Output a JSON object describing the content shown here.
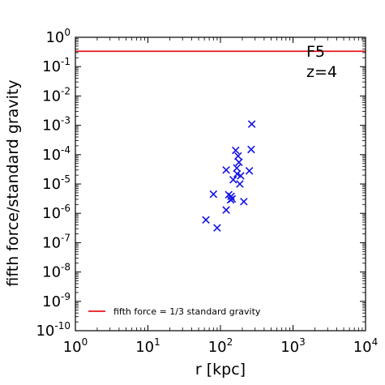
{
  "chart_data": {
    "type": "scatter",
    "title": "",
    "xlabel": "r [kpc]",
    "ylabel": "fifth force/standard gravity",
    "xscale": "log",
    "yscale": "log",
    "xlim": [
      1,
      10000
    ],
    "ylim": [
      1e-10,
      1
    ],
    "x_ticks": [
      {
        "base": "10",
        "exp": "0",
        "value": 1
      },
      {
        "base": "10",
        "exp": "1",
        "value": 10
      },
      {
        "base": "10",
        "exp": "2",
        "value": 100
      },
      {
        "base": "10",
        "exp": "3",
        "value": 1000
      },
      {
        "base": "10",
        "exp": "4",
        "value": 10000
      }
    ],
    "y_ticks": [
      {
        "base": "10",
        "exp": "-10",
        "value": 1e-10
      },
      {
        "base": "10",
        "exp": "-9",
        "value": 1e-09
      },
      {
        "base": "10",
        "exp": "-8",
        "value": 1e-08
      },
      {
        "base": "10",
        "exp": "-7",
        "value": 1e-07
      },
      {
        "base": "10",
        "exp": "-6",
        "value": 1e-06
      },
      {
        "base": "10",
        "exp": "-5",
        "value": 1e-05
      },
      {
        "base": "10",
        "exp": "-4",
        "value": 0.0001
      },
      {
        "base": "10",
        "exp": "-3",
        "value": 0.001
      },
      {
        "base": "10",
        "exp": "-2",
        "value": 0.01
      },
      {
        "base": "10",
        "exp": "-1",
        "value": 0.1
      },
      {
        "base": "10",
        "exp": "0",
        "value": 1
      }
    ],
    "annotations": [
      "F5",
      "z=4"
    ],
    "legend": {
      "placement": "lower-left",
      "entries": [
        {
          "label": "fifth force = 1/3 standard gravity",
          "color": "#e8141c"
        }
      ]
    },
    "reference_line": {
      "y": 0.3333,
      "color": "#e8141c"
    },
    "marker_color": "#1414e6",
    "points": [
      {
        "x": 270,
        "y": 0.0011
      },
      {
        "x": 265,
        "y": 0.00015
      },
      {
        "x": 162,
        "y": 0.00014
      },
      {
        "x": 175,
        "y": 9e-05
      },
      {
        "x": 180,
        "y": 5.5e-05
      },
      {
        "x": 168,
        "y": 3.5e-05
      },
      {
        "x": 120,
        "y": 3e-05
      },
      {
        "x": 250,
        "y": 2.8e-05
      },
      {
        "x": 170,
        "y": 2.2e-05
      },
      {
        "x": 190,
        "y": 1.9e-05
      },
      {
        "x": 150,
        "y": 1.4e-05
      },
      {
        "x": 185,
        "y": 1e-05
      },
      {
        "x": 80,
        "y": 4.5e-06
      },
      {
        "x": 130,
        "y": 4.3e-06
      },
      {
        "x": 140,
        "y": 3.8e-06
      },
      {
        "x": 145,
        "y": 3.1e-06
      },
      {
        "x": 138,
        "y": 2.9e-06
      },
      {
        "x": 210,
        "y": 2.5e-06
      },
      {
        "x": 120,
        "y": 1.3e-06
      },
      {
        "x": 63,
        "y": 6e-07
      },
      {
        "x": 90,
        "y": 3.2e-07
      }
    ]
  }
}
